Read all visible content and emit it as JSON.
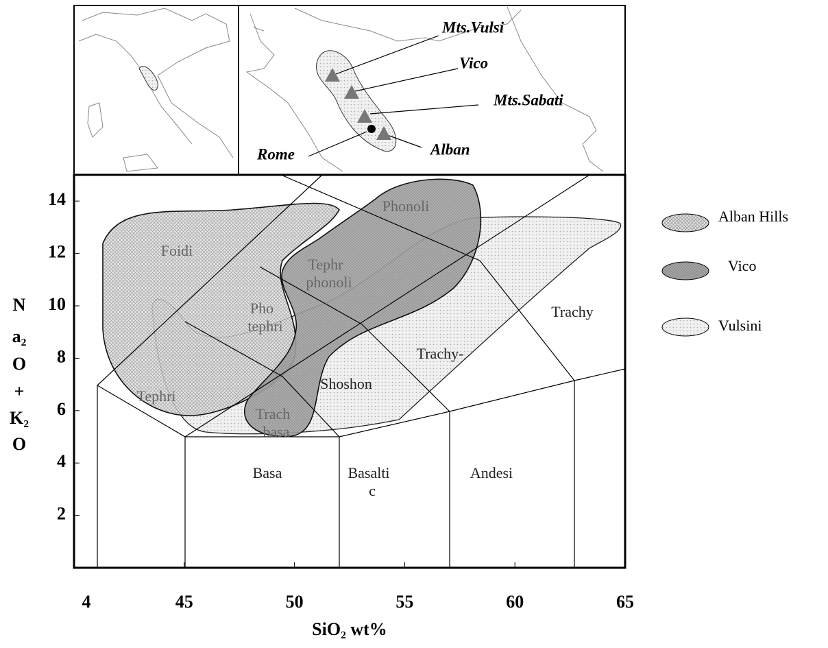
{
  "chart_data": {
    "type": "tas",
    "x_label": "SiO₂ wt%",
    "y_label": [
      "N",
      "a₂",
      "O",
      "+",
      "K₂",
      "O"
    ],
    "xlim": [
      40,
      65
    ],
    "xticks": [
      {
        "value": 40,
        "label": "4"
      },
      45,
      50,
      55,
      60,
      65
    ],
    "ylim": [
      0,
      15
    ],
    "yticks": [
      2,
      4,
      6,
      8,
      10,
      12,
      14
    ],
    "fields": [
      [
        "Foidi"
      ],
      [
        "Tephr",
        "phonoli"
      ],
      [
        "Pho",
        "tephri"
      ],
      [
        "Phonoli"
      ],
      [
        "Trachy"
      ],
      [
        "Trachy-"
      ],
      [
        "Shoshon"
      ],
      [
        "Tephri"
      ],
      [
        "Trach",
        "basa"
      ],
      [
        "Basa"
      ],
      [
        "Basalti",
        "c"
      ],
      [
        "Andesi"
      ]
    ],
    "legend": [
      "Alban Hills",
      "Vico",
      "Vulsini"
    ],
    "map_labels": [
      "Mts.Vulsi",
      "Vico",
      "Mts.Sabati",
      "Alban",
      "Rome"
    ]
  }
}
